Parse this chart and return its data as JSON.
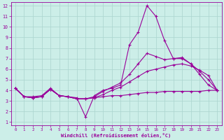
{
  "xlabel": "Windchill (Refroidissement éolien,°C)",
  "bg_color": "#cceee8",
  "grid_color": "#aad4ce",
  "line_color": "#990099",
  "xlim": [
    -0.5,
    23.5
  ],
  "ylim": [
    0.7,
    12.3
  ],
  "xticks": [
    0,
    1,
    2,
    3,
    4,
    5,
    6,
    7,
    8,
    9,
    10,
    11,
    12,
    13,
    14,
    15,
    16,
    17,
    18,
    19,
    20,
    21,
    22,
    23
  ],
  "yticks": [
    1,
    2,
    3,
    4,
    5,
    6,
    7,
    8,
    9,
    10,
    11,
    12
  ],
  "series1_x": [
    0,
    1,
    2,
    3,
    4,
    5,
    6,
    7,
    8,
    9,
    10,
    11,
    12,
    13,
    14,
    15,
    16,
    17,
    18,
    19,
    20,
    21,
    22,
    23
  ],
  "series1_y": [
    4.2,
    3.4,
    3.4,
    3.5,
    4.2,
    3.5,
    3.4,
    3.3,
    1.5,
    3.5,
    4.0,
    4.2,
    4.5,
    8.3,
    9.5,
    12.0,
    11.0,
    8.7,
    7.0,
    7.1,
    6.5,
    5.5,
    4.5,
    4.0
  ],
  "series2_x": [
    0,
    1,
    2,
    3,
    4,
    5,
    6,
    7,
    8,
    9,
    10,
    11,
    12,
    13,
    14,
    15,
    16,
    17,
    18,
    19,
    20,
    21,
    22,
    23
  ],
  "series2_y": [
    4.2,
    3.4,
    3.3,
    3.4,
    4.1,
    3.5,
    3.4,
    3.2,
    3.2,
    3.3,
    3.4,
    3.5,
    3.5,
    3.6,
    3.7,
    3.8,
    3.8,
    3.9,
    3.9,
    3.9,
    3.9,
    3.9,
    4.0,
    4.0
  ],
  "series3_x": [
    0,
    1,
    2,
    3,
    4,
    5,
    6,
    7,
    8,
    9,
    10,
    11,
    12,
    13,
    14,
    15,
    16,
    17,
    18,
    19,
    20,
    21,
    22,
    23
  ],
  "series3_y": [
    4.2,
    3.4,
    3.3,
    3.4,
    4.1,
    3.5,
    3.4,
    3.2,
    3.2,
    3.3,
    3.6,
    4.0,
    4.3,
    4.8,
    5.3,
    5.8,
    6.0,
    6.2,
    6.4,
    6.5,
    6.3,
    5.9,
    5.4,
    4.0
  ],
  "series4_x": [
    0,
    1,
    2,
    3,
    4,
    5,
    6,
    7,
    8,
    9,
    10,
    11,
    12,
    13,
    14,
    15,
    16,
    17,
    18,
    19,
    20,
    21,
    22,
    23
  ],
  "series4_y": [
    4.2,
    3.4,
    3.3,
    3.4,
    4.1,
    3.5,
    3.4,
    3.2,
    3.2,
    3.4,
    3.9,
    4.3,
    4.7,
    5.5,
    6.5,
    7.5,
    7.2,
    6.9,
    7.0,
    7.0,
    6.5,
    5.8,
    5.0,
    4.0
  ]
}
